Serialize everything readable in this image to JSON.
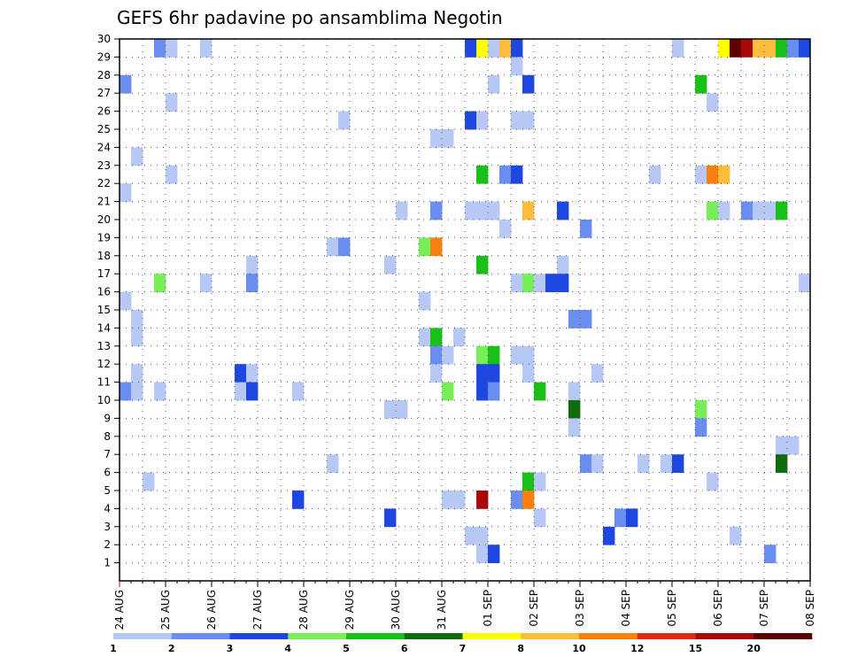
{
  "chart_data": {
    "type": "heatmap",
    "title": "GEFS 6hr padavine po ansamblima Negotin",
    "xlabel": "",
    "ylabel": "",
    "x_tick_labels": [
      "24 AUG",
      "25 AUG",
      "26 AUG",
      "27 AUG",
      "28 AUG",
      "29 AUG",
      "30 AUG",
      "31 AUG",
      "01 SEP",
      "02 SEP",
      "03 SEP",
      "04 SEP",
      "05 SEP",
      "06 SEP",
      "07 SEP",
      "08 SEP"
    ],
    "x_range_steps": [
      0,
      60
    ],
    "steps_per_day": 4,
    "y_tick_labels": [
      "1",
      "2",
      "3",
      "4",
      "5",
      "6",
      "7",
      "8",
      "9",
      "10",
      "11",
      "12",
      "13",
      "14",
      "15",
      "16",
      "17",
      "18",
      "19",
      "20",
      "21",
      "22",
      "23",
      "24",
      "25",
      "26",
      "27",
      "28",
      "29",
      "30"
    ],
    "y_range": [
      0,
      30
    ],
    "grid": true,
    "grid_style": "dotted",
    "legend": {
      "placement": "bottom",
      "bins": [
        {
          "color": "#b8c8f4"
        },
        {
          "color": "#6a8ef0"
        },
        {
          "color": "#1e46e0"
        },
        {
          "color": "#78ee58"
        },
        {
          "color": "#18c018"
        },
        {
          "color": "#0e6c0e"
        },
        {
          "color": "#ffff00"
        },
        {
          "color": "#fcbc3c"
        },
        {
          "color": "#f88010"
        },
        {
          "color": "#e02a14"
        },
        {
          "color": "#a80808"
        },
        {
          "color": "#600000"
        }
      ],
      "labels": [
        "1",
        "2",
        "3",
        "4",
        "5",
        "6",
        "7",
        "8",
        "10",
        "12",
        "15",
        "20"
      ]
    },
    "cells": [
      {
        "step": 3,
        "member": 30,
        "bin": 1
      },
      {
        "step": 4,
        "member": 30,
        "bin": 0
      },
      {
        "step": 7,
        "member": 30,
        "bin": 0
      },
      {
        "step": 30,
        "member": 30,
        "bin": 2
      },
      {
        "step": 31,
        "member": 30,
        "bin": 6
      },
      {
        "step": 32,
        "member": 30,
        "bin": 0
      },
      {
        "step": 33,
        "member": 30,
        "bin": 7
      },
      {
        "step": 34,
        "member": 30,
        "bin": 2
      },
      {
        "step": 48,
        "member": 30,
        "bin": 0
      },
      {
        "step": 52,
        "member": 30,
        "bin": 6
      },
      {
        "step": 53,
        "member": 30,
        "bin": 11
      },
      {
        "step": 54,
        "member": 30,
        "bin": 10
      },
      {
        "step": 55,
        "member": 30,
        "bin": 7
      },
      {
        "step": 56,
        "member": 30,
        "bin": 7
      },
      {
        "step": 57,
        "member": 30,
        "bin": 4
      },
      {
        "step": 58,
        "member": 30,
        "bin": 1
      },
      {
        "step": 59,
        "member": 30,
        "bin": 2
      },
      {
        "step": 34,
        "member": 29,
        "bin": 0
      },
      {
        "step": 0,
        "member": 28,
        "bin": 1
      },
      {
        "step": 32,
        "member": 28,
        "bin": 0
      },
      {
        "step": 35,
        "member": 28,
        "bin": 2
      },
      {
        "step": 50,
        "member": 28,
        "bin": 4
      },
      {
        "step": 4,
        "member": 27,
        "bin": 0
      },
      {
        "step": 51,
        "member": 27,
        "bin": 0
      },
      {
        "step": 19,
        "member": 26,
        "bin": 0
      },
      {
        "step": 30,
        "member": 26,
        "bin": 2
      },
      {
        "step": 31,
        "member": 26,
        "bin": 0
      },
      {
        "step": 34,
        "member": 26,
        "bin": 0
      },
      {
        "step": 35,
        "member": 26,
        "bin": 0
      },
      {
        "step": 27,
        "member": 25,
        "bin": 0
      },
      {
        "step": 28,
        "member": 25,
        "bin": 0
      },
      {
        "step": 1,
        "member": 24,
        "bin": 0
      },
      {
        "step": 4,
        "member": 23,
        "bin": 0
      },
      {
        "step": 31,
        "member": 23,
        "bin": 4
      },
      {
        "step": 33,
        "member": 23,
        "bin": 1
      },
      {
        "step": 34,
        "member": 23,
        "bin": 2
      },
      {
        "step": 46,
        "member": 23,
        "bin": 0
      },
      {
        "step": 50,
        "member": 23,
        "bin": 0
      },
      {
        "step": 51,
        "member": 23,
        "bin": 8
      },
      {
        "step": 52,
        "member": 23,
        "bin": 7
      },
      {
        "step": 0,
        "member": 22,
        "bin": 0
      },
      {
        "step": 24,
        "member": 21,
        "bin": 0
      },
      {
        "step": 27,
        "member": 21,
        "bin": 1
      },
      {
        "step": 30,
        "member": 21,
        "bin": 0
      },
      {
        "step": 31,
        "member": 21,
        "bin": 0
      },
      {
        "step": 32,
        "member": 21,
        "bin": 0
      },
      {
        "step": 35,
        "member": 21,
        "bin": 7
      },
      {
        "step": 38,
        "member": 21,
        "bin": 2
      },
      {
        "step": 51,
        "member": 21,
        "bin": 3
      },
      {
        "step": 52,
        "member": 21,
        "bin": 0
      },
      {
        "step": 54,
        "member": 21,
        "bin": 1
      },
      {
        "step": 55,
        "member": 21,
        "bin": 0
      },
      {
        "step": 56,
        "member": 21,
        "bin": 0
      },
      {
        "step": 57,
        "member": 21,
        "bin": 4
      },
      {
        "step": 33,
        "member": 20,
        "bin": 0
      },
      {
        "step": 40,
        "member": 20,
        "bin": 1
      },
      {
        "step": 18,
        "member": 19,
        "bin": 0
      },
      {
        "step": 19,
        "member": 19,
        "bin": 1
      },
      {
        "step": 26,
        "member": 19,
        "bin": 3
      },
      {
        "step": 27,
        "member": 19,
        "bin": 8
      },
      {
        "step": 11,
        "member": 18,
        "bin": 0
      },
      {
        "step": 23,
        "member": 18,
        "bin": 0
      },
      {
        "step": 31,
        "member": 18,
        "bin": 4
      },
      {
        "step": 38,
        "member": 18,
        "bin": 0
      },
      {
        "step": 3,
        "member": 17,
        "bin": 3
      },
      {
        "step": 7,
        "member": 17,
        "bin": 0
      },
      {
        "step": 11,
        "member": 17,
        "bin": 1
      },
      {
        "step": 34,
        "member": 17,
        "bin": 0
      },
      {
        "step": 35,
        "member": 17,
        "bin": 3
      },
      {
        "step": 36,
        "member": 17,
        "bin": 0
      },
      {
        "step": 37,
        "member": 17,
        "bin": 2
      },
      {
        "step": 38,
        "member": 17,
        "bin": 2
      },
      {
        "step": 59,
        "member": 17,
        "bin": 0
      },
      {
        "step": 0,
        "member": 16,
        "bin": 0
      },
      {
        "step": 26,
        "member": 16,
        "bin": 0
      },
      {
        "step": 39,
        "member": 15,
        "bin": 1
      },
      {
        "step": 40,
        "member": 15,
        "bin": 1
      },
      {
        "step": 1,
        "member": 15,
        "bin": 0
      },
      {
        "step": 1,
        "member": 14,
        "bin": 0
      },
      {
        "step": 26,
        "member": 14,
        "bin": 0
      },
      {
        "step": 27,
        "member": 14,
        "bin": 4
      },
      {
        "step": 29,
        "member": 14,
        "bin": 0
      },
      {
        "step": 27,
        "member": 13,
        "bin": 1
      },
      {
        "step": 28,
        "member": 13,
        "bin": 0
      },
      {
        "step": 31,
        "member": 13,
        "bin": 3
      },
      {
        "step": 32,
        "member": 13,
        "bin": 4
      },
      {
        "step": 34,
        "member": 13,
        "bin": 0
      },
      {
        "step": 35,
        "member": 13,
        "bin": 0
      },
      {
        "step": 1,
        "member": 12,
        "bin": 0
      },
      {
        "step": 10,
        "member": 12,
        "bin": 2
      },
      {
        "step": 11,
        "member": 12,
        "bin": 0
      },
      {
        "step": 27,
        "member": 12,
        "bin": 0
      },
      {
        "step": 31,
        "member": 12,
        "bin": 2
      },
      {
        "step": 32,
        "member": 12,
        "bin": 2
      },
      {
        "step": 35,
        "member": 12,
        "bin": 0
      },
      {
        "step": 41,
        "member": 12,
        "bin": 0
      },
      {
        "step": 0,
        "member": 11,
        "bin": 1
      },
      {
        "step": 1,
        "member": 11,
        "bin": 0
      },
      {
        "step": 3,
        "member": 11,
        "bin": 0
      },
      {
        "step": 10,
        "member": 11,
        "bin": 0
      },
      {
        "step": 11,
        "member": 11,
        "bin": 2
      },
      {
        "step": 15,
        "member": 11,
        "bin": 0
      },
      {
        "step": 28,
        "member": 11,
        "bin": 3
      },
      {
        "step": 31,
        "member": 11,
        "bin": 2
      },
      {
        "step": 32,
        "member": 11,
        "bin": 1
      },
      {
        "step": 36,
        "member": 11,
        "bin": 4
      },
      {
        "step": 39,
        "member": 11,
        "bin": 0
      },
      {
        "step": 23,
        "member": 10,
        "bin": 0
      },
      {
        "step": 24,
        "member": 10,
        "bin": 0
      },
      {
        "step": 39,
        "member": 10,
        "bin": 5
      },
      {
        "step": 50,
        "member": 10,
        "bin": 3
      },
      {
        "step": 39,
        "member": 9,
        "bin": 0
      },
      {
        "step": 50,
        "member": 9,
        "bin": 1
      },
      {
        "step": 57,
        "member": 8,
        "bin": 0
      },
      {
        "step": 58,
        "member": 8,
        "bin": 0
      },
      {
        "step": 18,
        "member": 7,
        "bin": 0
      },
      {
        "step": 40,
        "member": 7,
        "bin": 1
      },
      {
        "step": 41,
        "member": 7,
        "bin": 0
      },
      {
        "step": 45,
        "member": 7,
        "bin": 0
      },
      {
        "step": 47,
        "member": 7,
        "bin": 0
      },
      {
        "step": 48,
        "member": 7,
        "bin": 2
      },
      {
        "step": 57,
        "member": 7,
        "bin": 5
      },
      {
        "step": 2,
        "member": 6,
        "bin": 0
      },
      {
        "step": 35,
        "member": 6,
        "bin": 4
      },
      {
        "step": 36,
        "member": 6,
        "bin": 0
      },
      {
        "step": 51,
        "member": 6,
        "bin": 0
      },
      {
        "step": 15,
        "member": 5,
        "bin": 2
      },
      {
        "step": 28,
        "member": 5,
        "bin": 0
      },
      {
        "step": 29,
        "member": 5,
        "bin": 0
      },
      {
        "step": 31,
        "member": 5,
        "bin": 10
      },
      {
        "step": 34,
        "member": 5,
        "bin": 1
      },
      {
        "step": 35,
        "member": 5,
        "bin": 8
      },
      {
        "step": 23,
        "member": 4,
        "bin": 2
      },
      {
        "step": 36,
        "member": 4,
        "bin": 0
      },
      {
        "step": 43,
        "member": 4,
        "bin": 1
      },
      {
        "step": 44,
        "member": 4,
        "bin": 2
      },
      {
        "step": 30,
        "member": 3,
        "bin": 0
      },
      {
        "step": 31,
        "member": 3,
        "bin": 0
      },
      {
        "step": 42,
        "member": 3,
        "bin": 2
      },
      {
        "step": 53,
        "member": 3,
        "bin": 0
      },
      {
        "step": 31,
        "member": 2,
        "bin": 0
      },
      {
        "step": 32,
        "member": 2,
        "bin": 2
      },
      {
        "step": 56,
        "member": 2,
        "bin": 1
      }
    ]
  }
}
